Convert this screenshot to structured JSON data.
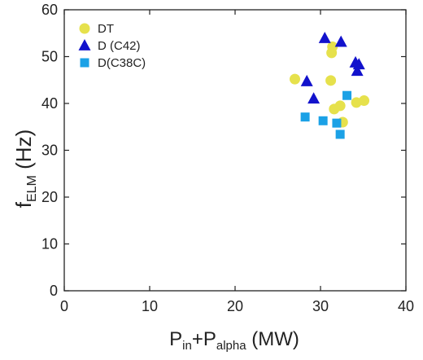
{
  "chart_data": {
    "type": "scatter",
    "xlabel": {
      "main": "P",
      "sub1": "in",
      "plus": "+P",
      "sub2": "alpha",
      "unit": " (MW)"
    },
    "ylabel": {
      "main": "f",
      "sub": "ELM",
      "unit": " (Hz)"
    },
    "xlim": [
      0,
      40
    ],
    "ylim": [
      0,
      60
    ],
    "xticks": [
      0,
      10,
      20,
      30,
      40
    ],
    "yticks": [
      0,
      10,
      20,
      30,
      40,
      50,
      60
    ],
    "grid": false,
    "legend_position": "top-left",
    "series": [
      {
        "name": "DT",
        "marker": "circle",
        "color": "#e6e14c",
        "points": [
          [
            27.0,
            45.2
          ],
          [
            31.3,
            50.8
          ],
          [
            31.4,
            52.1
          ],
          [
            31.2,
            44.9
          ],
          [
            31.6,
            38.8
          ],
          [
            32.3,
            39.5
          ],
          [
            32.6,
            36.0
          ],
          [
            34.2,
            40.2
          ],
          [
            35.1,
            40.6
          ]
        ]
      },
      {
        "name": "D (C42)",
        "marker": "triangle",
        "color": "#1212cc",
        "points": [
          [
            28.4,
            44.7
          ],
          [
            29.2,
            41.0
          ],
          [
            30.5,
            53.9
          ],
          [
            32.4,
            53.1
          ],
          [
            34.1,
            48.7
          ],
          [
            34.5,
            48.3
          ],
          [
            34.3,
            46.9
          ]
        ]
      },
      {
        "name": "D(C38C)",
        "marker": "square",
        "color": "#1ba1e6",
        "points": [
          [
            28.2,
            37.1
          ],
          [
            30.3,
            36.3
          ],
          [
            31.9,
            35.8
          ],
          [
            32.3,
            33.4
          ],
          [
            33.1,
            41.7
          ]
        ]
      }
    ]
  }
}
